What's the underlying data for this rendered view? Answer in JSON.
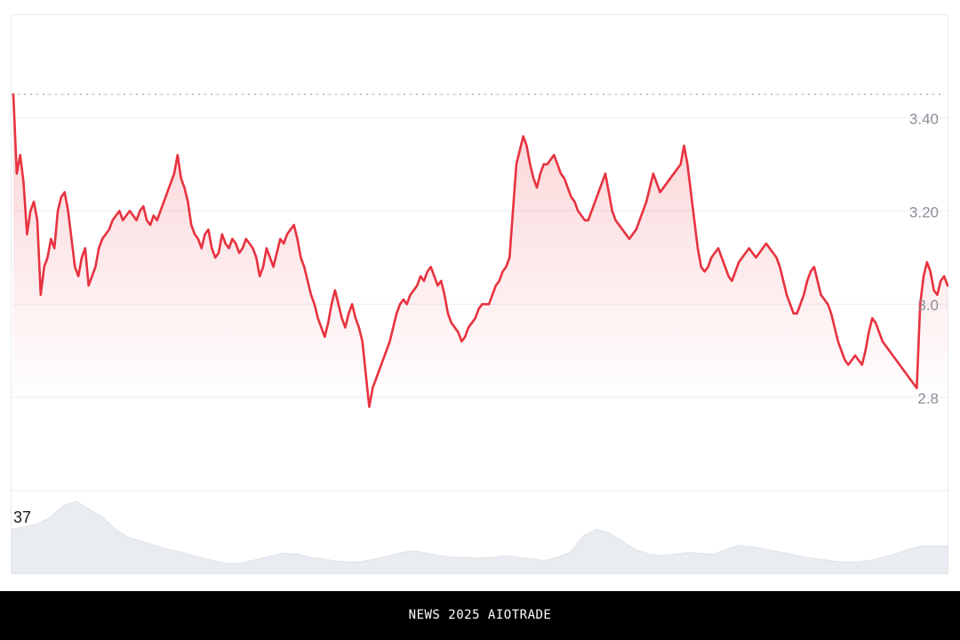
{
  "chart_data": {
    "type": "area",
    "title": "",
    "xlabel": "",
    "ylabel": "",
    "y_ticks": [
      "3.40",
      "3.20",
      "3.0",
      "2.8"
    ],
    "y_tick_values": [
      3.4,
      3.2,
      3.0,
      2.8
    ],
    "ylim": [
      2.6,
      3.62
    ],
    "reference_line": 3.45,
    "grid": true,
    "series": [
      {
        "color": "#e8323f",
        "values": [
          3.45,
          3.28,
          3.32,
          3.26,
          3.15,
          3.2,
          3.22,
          3.18,
          3.02,
          3.08,
          3.1,
          3.14,
          3.12,
          3.2,
          3.23,
          3.24,
          3.2,
          3.14,
          3.08,
          3.06,
          3.1,
          3.12,
          3.04,
          3.06,
          3.08,
          3.12,
          3.14,
          3.15,
          3.16,
          3.18,
          3.19,
          3.2,
          3.18,
          3.19,
          3.2,
          3.19,
          3.18,
          3.2,
          3.21,
          3.18,
          3.17,
          3.19,
          3.18,
          3.2,
          3.22,
          3.24,
          3.26,
          3.28,
          3.32,
          3.27,
          3.25,
          3.22,
          3.17,
          3.15,
          3.14,
          3.12,
          3.15,
          3.16,
          3.12,
          3.1,
          3.11,
          3.15,
          3.13,
          3.12,
          3.14,
          3.13,
          3.11,
          3.12,
          3.14,
          3.13,
          3.12,
          3.1,
          3.06,
          3.08,
          3.12,
          3.1,
          3.08,
          3.11,
          3.14,
          3.13,
          3.15,
          3.16,
          3.17,
          3.14,
          3.1,
          3.08,
          3.05,
          3.02,
          3.0,
          2.97,
          2.95,
          2.93,
          2.96,
          3.0,
          3.03,
          3.0,
          2.97,
          2.95,
          2.98,
          3.0,
          2.97,
          2.95,
          2.92,
          2.85,
          2.78,
          2.82,
          2.84,
          2.86,
          2.88,
          2.9,
          2.92,
          2.95,
          2.98,
          3.0,
          3.01,
          3.0,
          3.02,
          3.03,
          3.04,
          3.06,
          3.05,
          3.07,
          3.08,
          3.06,
          3.04,
          3.05,
          3.02,
          2.98,
          2.96,
          2.95,
          2.94,
          2.92,
          2.93,
          2.95,
          2.96,
          2.97,
          2.99,
          3.0,
          3.0,
          3.0,
          3.02,
          3.04,
          3.05,
          3.07,
          3.08,
          3.1,
          3.2,
          3.3,
          3.33,
          3.36,
          3.34,
          3.3,
          3.27,
          3.25,
          3.28,
          3.3,
          3.3,
          3.31,
          3.32,
          3.3,
          3.28,
          3.27,
          3.25,
          3.23,
          3.22,
          3.2,
          3.19,
          3.18,
          3.18,
          3.2,
          3.22,
          3.24,
          3.26,
          3.28,
          3.24,
          3.2,
          3.18,
          3.17,
          3.16,
          3.15,
          3.14,
          3.15,
          3.16,
          3.18,
          3.2,
          3.22,
          3.25,
          3.28,
          3.26,
          3.24,
          3.25,
          3.26,
          3.27,
          3.28,
          3.29,
          3.3,
          3.34,
          3.3,
          3.24,
          3.18,
          3.12,
          3.08,
          3.07,
          3.08,
          3.1,
          3.11,
          3.12,
          3.1,
          3.08,
          3.06,
          3.05,
          3.07,
          3.09,
          3.1,
          3.11,
          3.12,
          3.11,
          3.1,
          3.11,
          3.12,
          3.13,
          3.12,
          3.11,
          3.1,
          3.08,
          3.05,
          3.02,
          3.0,
          2.98,
          2.98,
          3.0,
          3.02,
          3.05,
          3.07,
          3.08,
          3.05,
          3.02,
          3.01,
          3.0,
          2.98,
          2.95,
          2.92,
          2.9,
          2.88,
          2.87,
          2.88,
          2.89,
          2.88,
          2.87,
          2.9,
          2.94,
          2.97,
          2.96,
          2.94,
          2.92,
          2.91,
          2.9,
          2.89,
          2.88,
          2.87,
          2.86,
          2.85,
          2.84,
          2.83,
          2.82,
          3.0,
          3.06,
          3.09,
          3.07,
          3.03,
          3.02,
          3.05,
          3.06,
          3.04
        ]
      }
    ],
    "volume": {
      "label": "37",
      "values": [
        0.55,
        0.58,
        0.62,
        0.7,
        0.85,
        0.9,
        0.8,
        0.7,
        0.55,
        0.45,
        0.4,
        0.35,
        0.3,
        0.27,
        0.22,
        0.18,
        0.14,
        0.12,
        0.14,
        0.18,
        0.22,
        0.25,
        0.24,
        0.2,
        0.18,
        0.15,
        0.14,
        0.15,
        0.18,
        0.22,
        0.26,
        0.28,
        0.25,
        0.22,
        0.2,
        0.2,
        0.19,
        0.2,
        0.22,
        0.2,
        0.18,
        0.16,
        0.2,
        0.27,
        0.47,
        0.55,
        0.5,
        0.4,
        0.3,
        0.24,
        0.22,
        0.24,
        0.26,
        0.25,
        0.24,
        0.3,
        0.35,
        0.33,
        0.3,
        0.27,
        0.24,
        0.2,
        0.18,
        0.16,
        0.14,
        0.14,
        0.16,
        0.2,
        0.24,
        0.3,
        0.34,
        0.34,
        0.34
      ]
    }
  },
  "footer": {
    "text": "NEWS 2025 AIOTRADE"
  }
}
